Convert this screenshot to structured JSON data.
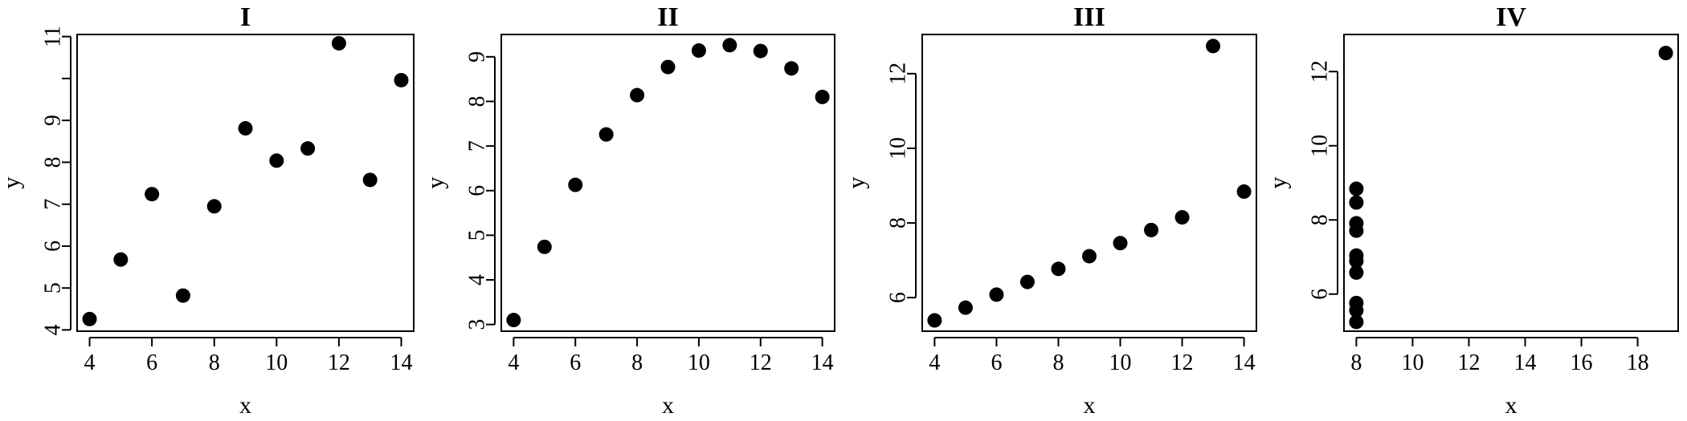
{
  "chart_data": [
    {
      "type": "scatter",
      "title": "I",
      "xlabel": "x",
      "ylabel": "y",
      "xticks": [
        4,
        6,
        8,
        10,
        12,
        14
      ],
      "yticks": [
        4,
        5,
        6,
        7,
        8,
        9,
        10,
        11
      ],
      "ytick_labels": [
        "4",
        "5",
        "6",
        "7",
        "8",
        "9",
        "",
        "11"
      ],
      "xlim": [
        3.6,
        14.4
      ],
      "ylim": [
        3.97,
        11.05
      ],
      "grid": false,
      "x": [
        10,
        8,
        13,
        9,
        11,
        14,
        6,
        4,
        12,
        7,
        5
      ],
      "y": [
        8.04,
        6.95,
        7.58,
        8.81,
        8.33,
        9.96,
        7.24,
        4.26,
        10.84,
        4.82,
        5.68
      ]
    },
    {
      "type": "scatter",
      "title": "II",
      "xlabel": "x",
      "ylabel": "y",
      "xticks": [
        4,
        6,
        8,
        10,
        12,
        14
      ],
      "yticks": [
        3,
        4,
        5,
        6,
        7,
        8,
        9
      ],
      "ytick_labels": [
        "3",
        "4",
        "5",
        "6",
        "7",
        "8",
        "9"
      ],
      "xlim": [
        3.6,
        14.4
      ],
      "ylim": [
        2.85,
        9.5
      ],
      "grid": false,
      "x": [
        10,
        8,
        13,
        9,
        11,
        14,
        6,
        4,
        12,
        7,
        5
      ],
      "y": [
        9.14,
        8.14,
        8.74,
        8.77,
        9.26,
        8.1,
        6.13,
        3.1,
        9.13,
        7.26,
        4.74
      ]
    },
    {
      "type": "scatter",
      "title": "III",
      "xlabel": "x",
      "ylabel": "y",
      "xticks": [
        4,
        6,
        8,
        10,
        12,
        14
      ],
      "yticks": [
        6,
        8,
        10,
        12
      ],
      "ytick_labels": [
        "6",
        "8",
        "10",
        "12"
      ],
      "xlim": [
        3.6,
        14.4
      ],
      "ylim": [
        5.1,
        13.05
      ],
      "grid": false,
      "x": [
        10,
        8,
        13,
        9,
        11,
        14,
        6,
        4,
        12,
        7,
        5
      ],
      "y": [
        7.46,
        6.77,
        12.74,
        7.11,
        7.81,
        8.84,
        6.08,
        5.39,
        8.15,
        6.42,
        5.73
      ]
    },
    {
      "type": "scatter",
      "title": "IV",
      "xlabel": "x",
      "ylabel": "y",
      "xticks": [
        8,
        10,
        12,
        14,
        16,
        18
      ],
      "yticks": [
        6,
        8,
        10,
        12
      ],
      "ytick_labels": [
        "6",
        "8",
        "10",
        "12"
      ],
      "xlim": [
        7.56,
        19.44
      ],
      "ylim": [
        5.0,
        13.0
      ],
      "grid": false,
      "x": [
        8,
        8,
        8,
        8,
        8,
        8,
        8,
        19,
        8,
        8,
        8
      ],
      "y": [
        6.58,
        5.76,
        7.71,
        8.84,
        8.47,
        7.04,
        5.25,
        12.5,
        5.56,
        7.91,
        6.89
      ]
    }
  ]
}
